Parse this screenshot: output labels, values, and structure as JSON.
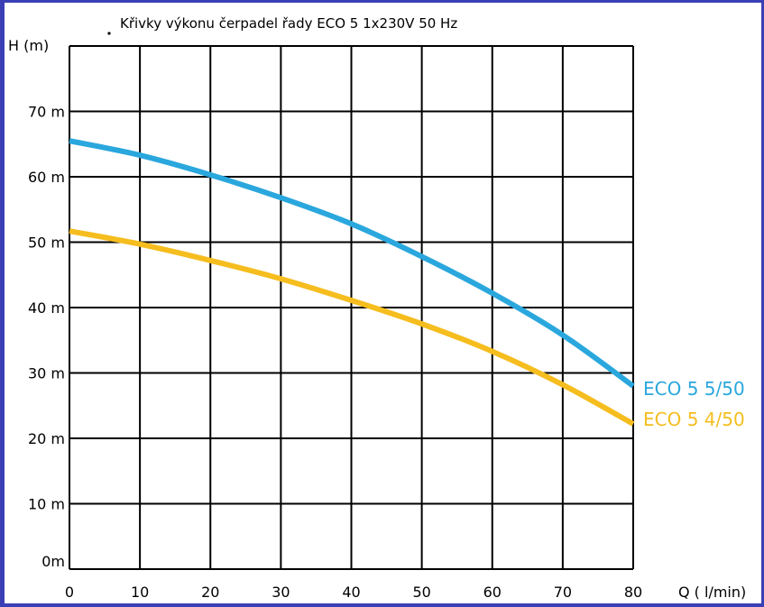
{
  "chart_data": {
    "type": "line",
    "title": "Křivky výkonu čerpadel řady ECO 5   1x230V   50 Hz",
    "xlabel": "Q ( l/min)",
    "ylabel": "H (m)",
    "xlim": [
      0,
      80
    ],
    "ylim": [
      0,
      80
    ],
    "grid": true,
    "x_ticks": [
      0,
      10,
      20,
      30,
      40,
      50,
      60,
      70,
      80
    ],
    "x_tick_labels": [
      "0",
      "10",
      "20",
      "30",
      "40",
      "50",
      "60",
      "70",
      "80"
    ],
    "y_ticks": [
      0,
      10,
      20,
      30,
      40,
      50,
      60,
      70
    ],
    "y_tick_labels": [
      "0m",
      "10 m",
      "20 m",
      "30 m",
      "40 m",
      "50 m",
      "60 m",
      "70 m"
    ],
    "legend": "right, labels at line ends",
    "series": [
      {
        "name": "ECO 5  5/50",
        "color": "#2aa7dd",
        "x": [
          0,
          10,
          20,
          30,
          40,
          50,
          60,
          70,
          80
        ],
        "y": [
          65.5,
          63.3,
          60.3,
          56.8,
          52.8,
          47.8,
          42.2,
          35.8,
          28.0
        ]
      },
      {
        "name": "ECO 5  4/50",
        "color": "#f5bd1e",
        "x": [
          0,
          10,
          20,
          30,
          40,
          50,
          60,
          70,
          80
        ],
        "y": [
          51.7,
          49.7,
          47.2,
          44.4,
          41.1,
          37.5,
          33.3,
          28.2,
          22.2
        ]
      }
    ]
  }
}
